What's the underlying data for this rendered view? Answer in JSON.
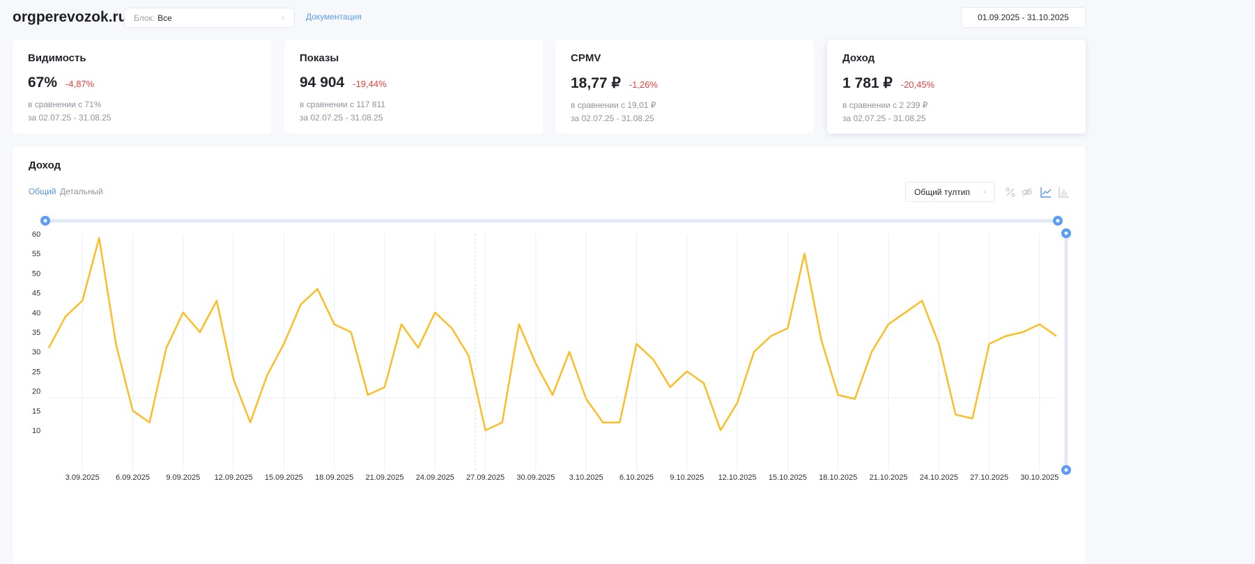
{
  "header": {
    "site": "orgperevozok.ru",
    "block_label": "Блок:",
    "block_value": "Все",
    "docs_link": "Документация",
    "date_range": "01.09.2025 - 31.10.2025"
  },
  "cards": [
    {
      "title": "Видимость",
      "value": "67%",
      "delta": "-4,87%",
      "compare": "в сравнении с 71%",
      "period": "за 02.07.25 - 31.08.25"
    },
    {
      "title": "Показы",
      "value": "94 904",
      "delta": "-19,44%",
      "compare": "в сравнении с 117 811",
      "period": "за 02.07.25 - 31.08.25"
    },
    {
      "title": "CPMV",
      "value": "18,77 ₽",
      "delta": "-1,26%",
      "compare": "в сравнении с 19,01 ₽",
      "period": "за 02.07.25 - 31.08.25"
    },
    {
      "title": "Доход",
      "value": "1 781 ₽",
      "delta": "-20,45%",
      "compare": "в сравнении с 2 239 ₽",
      "period": "за 02.07.25 - 31.08.25"
    }
  ],
  "chart_section": {
    "title": "Доход",
    "tabs": [
      "Общий",
      "Детальный"
    ],
    "active_tab": "Общий",
    "tooltip_mode": "Общий тултип",
    "icons": [
      "percent-icon",
      "eye-off-icon",
      "line-chart-icon",
      "bar-chart-icon"
    ],
    "active_icon": "line-chart-icon"
  },
  "colors": {
    "line": "#fbbd23",
    "accent": "#5b9cf5",
    "negative": "#e5413c"
  },
  "chart_data": {
    "type": "line",
    "ylim": [
      10,
      60
    ],
    "yticks": [
      10,
      15,
      20,
      25,
      30,
      35,
      40,
      45,
      50,
      55,
      60
    ],
    "xtick_labels": [
      "3.09.2025",
      "6.09.2025",
      "9.09.2025",
      "12.09.2025",
      "15.09.2025",
      "18.09.2025",
      "21.09.2025",
      "24.09.2025",
      "27.09.2025",
      "30.09.2025",
      "3.10.2025",
      "6.10.2025",
      "9.10.2025",
      "12.10.2025",
      "15.10.2025",
      "18.10.2025",
      "21.10.2025",
      "24.10.2025",
      "27.10.2025",
      "30.10.2025"
    ],
    "x_start": "01.09.2025",
    "x_end": "31.10.2025",
    "values": [
      31,
      39,
      43,
      59,
      32,
      15,
      12,
      31,
      40,
      35,
      43,
      23,
      12,
      24,
      32,
      42,
      46,
      37,
      35,
      19,
      21,
      37,
      31,
      40,
      36,
      29,
      10,
      12,
      37,
      27,
      19,
      30,
      18,
      12,
      12,
      32,
      28,
      21,
      25,
      22,
      10,
      17,
      30,
      34,
      36,
      55,
      33,
      19,
      18,
      30,
      37,
      40,
      43,
      32,
      14,
      13,
      32,
      34,
      35,
      37,
      34
    ],
    "grid": "vertical",
    "reference_line": 18.3
  }
}
